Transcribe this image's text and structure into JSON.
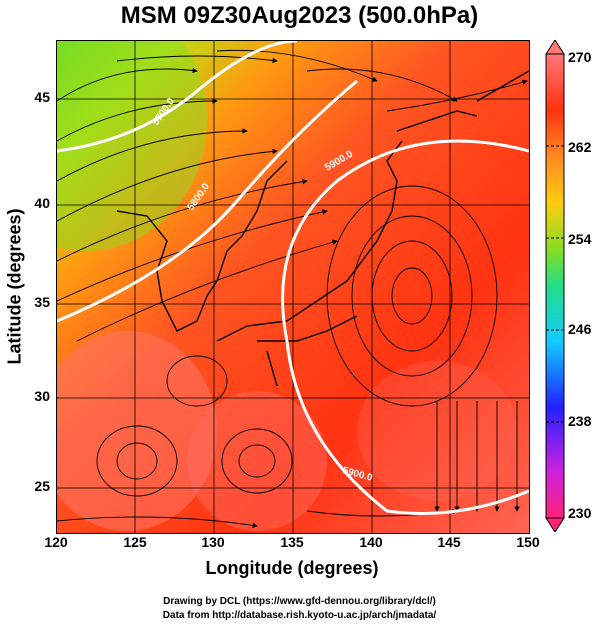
{
  "title": "MSM 09Z30Aug2023 (500.0hPa)",
  "axes": {
    "xlabel": "Longitude (degrees)",
    "ylabel": "Latitude  (degrees)",
    "xticks": [
      "120",
      "125",
      "130",
      "135",
      "140",
      "145",
      "150"
    ],
    "yticks": [
      "45",
      "40",
      "35",
      "30",
      "25"
    ]
  },
  "colorbar": {
    "ticks": [
      "270",
      "262",
      "254",
      "246",
      "238",
      "230"
    ],
    "colors": [
      "#ff2277",
      "#cc22dd",
      "#2222ff",
      "#11ccff",
      "#22dd88",
      "#88dd22",
      "#ffcc11",
      "#ff8822",
      "#ff3311",
      "#ff7777"
    ]
  },
  "contours": {
    "labels": [
      "5700.0",
      "5800.0",
      "5900.0",
      "5900.0"
    ]
  },
  "credits": {
    "line1": "Drawing by DCL (https://www.gfd-dennou.org/library/dcl/)",
    "line2": "Data from http://database.rish.kyoto-u.ac.jp/arch/jmadata/"
  }
}
